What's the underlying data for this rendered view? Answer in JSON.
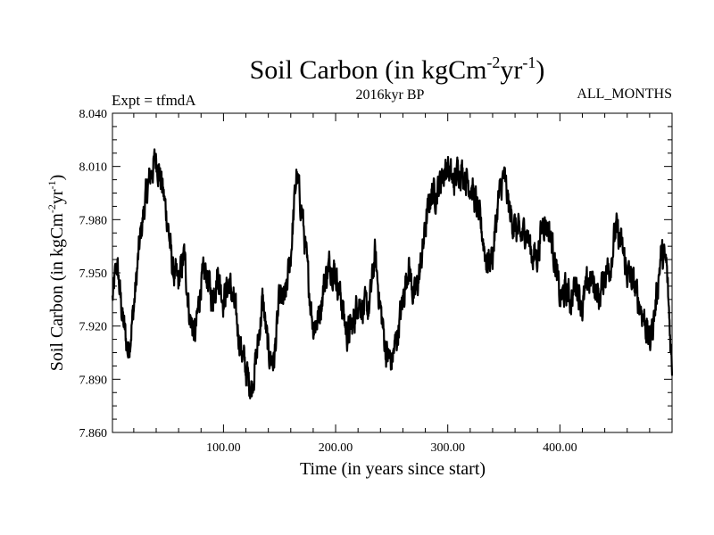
{
  "chart_data": {
    "type": "line",
    "title": "Soil Carbon (in kgCm",
    "title_sup1": "-2",
    "title_mid": "yr",
    "title_sup2": "-1",
    "title_end": ")",
    "subtitle": "2016kyr BP",
    "experiment_label": "Expt = tfmdA",
    "period_label": "ALL_MONTHS",
    "xlabel": "Time (in years since start)",
    "ylabel_main": "Soil Carbon (in kgCm",
    "ylabel_sup1": "-2",
    "ylabel_mid": "yr",
    "ylabel_sup2": "-1",
    "ylabel_end": ")",
    "xlim": [
      1,
      500
    ],
    "ylim": [
      7.86,
      8.04
    ],
    "x_ticks": [
      100,
      200,
      300,
      400
    ],
    "x_tick_labels": [
      "100.00",
      "200.00",
      "300.00",
      "400.00"
    ],
    "y_ticks": [
      7.86,
      7.89,
      7.92,
      7.95,
      7.98,
      8.01,
      8.04
    ],
    "y_tick_labels": [
      "7.860",
      "7.890",
      "7.920",
      "7.950",
      "7.980",
      "8.010",
      "8.040"
    ],
    "grid": false,
    "line_color": "#000000",
    "series": [
      {
        "name": "Soil Carbon",
        "x": [
          1,
          5,
          10,
          15,
          20,
          25,
          30,
          35,
          40,
          45,
          50,
          55,
          60,
          65,
          70,
          75,
          80,
          85,
          90,
          95,
          100,
          105,
          110,
          115,
          120,
          125,
          130,
          135,
          140,
          145,
          150,
          155,
          160,
          165,
          170,
          175,
          180,
          185,
          190,
          195,
          200,
          205,
          210,
          215,
          220,
          225,
          230,
          235,
          240,
          245,
          250,
          255,
          260,
          265,
          270,
          275,
          280,
          285,
          290,
          295,
          300,
          305,
          310,
          315,
          320,
          325,
          330,
          335,
          340,
          345,
          350,
          355,
          360,
          365,
          370,
          375,
          380,
          385,
          390,
          395,
          400,
          405,
          410,
          415,
          420,
          425,
          430,
          435,
          440,
          445,
          450,
          455,
          460,
          465,
          470,
          475,
          480,
          485,
          490,
          495,
          500
        ],
        "y": [
          7.935,
          7.955,
          7.925,
          7.905,
          7.93,
          7.965,
          7.99,
          8.005,
          8.015,
          8.0,
          7.98,
          7.95,
          7.945,
          7.96,
          7.925,
          7.915,
          7.945,
          7.95,
          7.935,
          7.95,
          7.935,
          7.945,
          7.93,
          7.91,
          7.895,
          7.885,
          7.905,
          7.935,
          7.905,
          7.9,
          7.935,
          7.935,
          7.96,
          8.005,
          7.985,
          7.95,
          7.92,
          7.925,
          7.945,
          7.955,
          7.95,
          7.935,
          7.915,
          7.92,
          7.935,
          7.93,
          7.93,
          7.96,
          7.93,
          7.905,
          7.9,
          7.915,
          7.935,
          7.955,
          7.935,
          7.95,
          7.975,
          7.995,
          7.995,
          8.005,
          8.01,
          8.0,
          8.01,
          8.005,
          8.0,
          7.99,
          7.975,
          7.955,
          7.96,
          7.99,
          8.005,
          7.985,
          7.975,
          7.97,
          7.975,
          7.96,
          7.96,
          7.98,
          7.975,
          7.96,
          7.935,
          7.94,
          7.935,
          7.945,
          7.93,
          7.945,
          7.945,
          7.935,
          7.95,
          7.955,
          7.975,
          7.965,
          7.95,
          7.945,
          7.935,
          7.925,
          7.91,
          7.93,
          7.96,
          7.955,
          7.895
        ]
      }
    ]
  }
}
